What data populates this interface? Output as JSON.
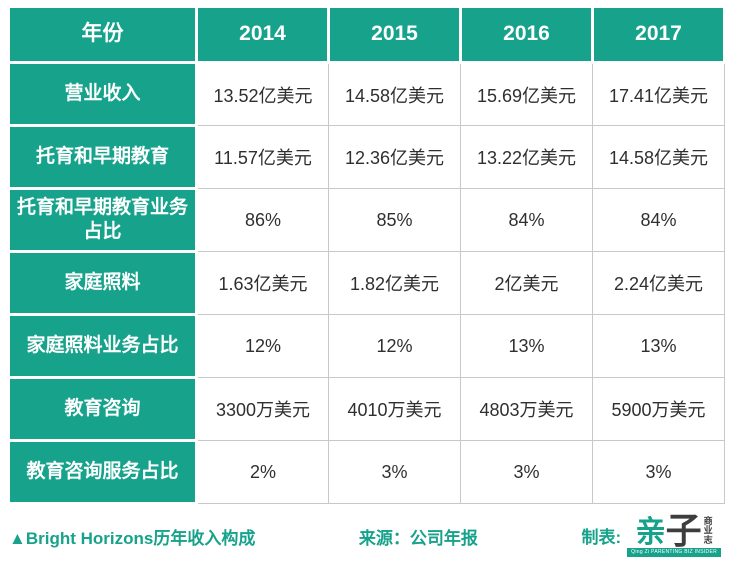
{
  "chart_data": {
    "type": "table",
    "title": "▲Bright Horizons历年收入构成",
    "source": "来源：公司年报",
    "columns": [
      "年份",
      "2014",
      "2015",
      "2016",
      "2017"
    ],
    "rows": [
      {
        "label": "营业收入",
        "values": [
          "13.52亿美元",
          "14.58亿美元",
          "15.69亿美元",
          "17.41亿美元"
        ]
      },
      {
        "label": "托育和早期教育",
        "values": [
          "11.57亿美元",
          "12.36亿美元",
          "13.22亿美元",
          "14.58亿美元"
        ]
      },
      {
        "label": "托育和早期教育业务占比",
        "values": [
          "86%",
          "85%",
          "84%",
          "84%"
        ]
      },
      {
        "label": "家庭照料",
        "values": [
          "1.63亿美元",
          "1.82亿美元",
          "2亿美元",
          "2.24亿美元"
        ]
      },
      {
        "label": "家庭照料业务占比",
        "values": [
          "12%",
          "12%",
          "13%",
          "13%"
        ]
      },
      {
        "label": "教育咨询",
        "values": [
          "3300万美元",
          "4010万美元",
          "4803万美元",
          "5900万美元"
        ]
      },
      {
        "label": "教育咨询服务占比",
        "values": [
          "2%",
          "3%",
          "3%",
          "3%"
        ]
      }
    ],
    "layout": {
      "header_row": true,
      "header_column": true,
      "grid": true
    }
  },
  "footer": {
    "caption": "▲Bright Horizons历年收入构成",
    "source": "来源：公司年报",
    "credit_label": "制表:",
    "logo": {
      "char_qin": "亲",
      "char_zi": "子",
      "vertical_1": "商",
      "vertical_2": "业",
      "vertical_3": "志",
      "banner": "Qing Zi PARENTING BIZ INSIDER"
    }
  },
  "colors": {
    "accent_teal": "#16a28b",
    "data_text": "#2f2f2f",
    "grid_line": "#c8c8c8",
    "header_text": "#ffffff"
  }
}
